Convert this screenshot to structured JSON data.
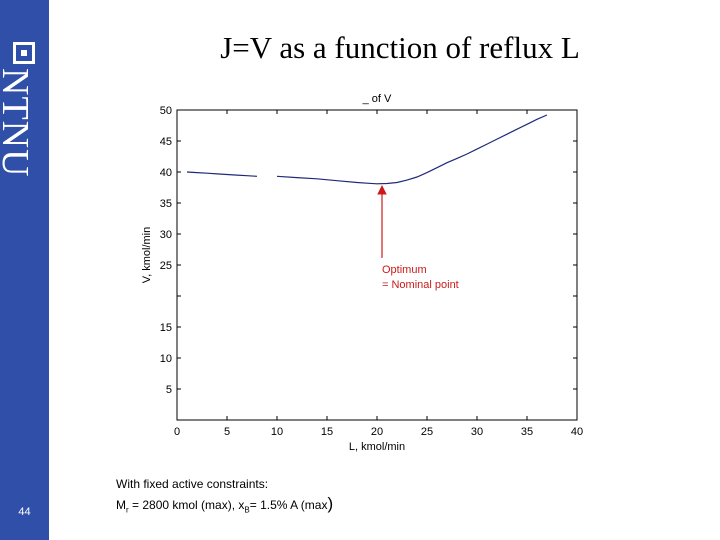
{
  "slide": {
    "title": "J=V as a function of reflux L",
    "page_number": "44",
    "logo_text": "NTNU",
    "notes_line1": "With fixed active constraints:",
    "notes_line2_prefix": "M",
    "notes_line2_prefix_sub": "r",
    "notes_line2_mid": " = 2800 kmol (max), x",
    "notes_line2_mid_sub": "B",
    "notes_line2_suffix": "= 1.5% A (max",
    "notes_line2_close": ")",
    "accent_color": "#2f4fa8"
  },
  "chart_data": {
    "type": "line",
    "title": "_ of V",
    "xlabel": "L, kmol/min",
    "ylabel": "V, kmol/min",
    "xlim": [
      0,
      40
    ],
    "ylim": [
      0,
      50
    ],
    "xticks": [
      0,
      5,
      10,
      15,
      20,
      25,
      30,
      35,
      40
    ],
    "yticks": [
      0,
      5,
      10,
      15,
      20,
      25,
      30,
      35,
      40,
      45,
      50
    ],
    "xtick_labels": [
      "0",
      "5",
      "10",
      "15",
      "20",
      "25",
      "30",
      "35",
      "40"
    ],
    "ytick_labels": [
      "",
      "5",
      "10",
      "15",
      "",
      "25",
      "30",
      "35",
      "40",
      "45",
      "50"
    ],
    "grid": false,
    "line_color": "#1f2a7a",
    "series": [
      {
        "x": [
          1,
          2,
          3,
          4,
          5,
          6,
          7,
          8
        ],
        "y": [
          40.0,
          39.9,
          39.8,
          39.7,
          39.6,
          39.5,
          39.4,
          39.3
        ]
      },
      {
        "x": [
          10,
          12,
          14,
          16,
          18,
          19,
          20,
          21,
          22,
          23,
          24,
          25,
          26,
          27,
          28,
          29,
          30,
          31,
          32,
          33,
          34,
          35,
          36,
          37
        ],
        "y": [
          39.3,
          39.1,
          38.9,
          38.6,
          38.3,
          38.2,
          38.1,
          38.15,
          38.3,
          38.7,
          39.2,
          39.9,
          40.7,
          41.5,
          42.2,
          42.9,
          43.7,
          44.5,
          45.3,
          46.1,
          46.9,
          47.7,
          48.5,
          49.2
        ]
      }
    ],
    "annotation": {
      "line1": "Optimum",
      "line2": "= Nominal point",
      "color": "#cc1a1a",
      "x": 20.5,
      "y": 38.1,
      "text_x": 20.5,
      "text_y": 25.5
    }
  }
}
